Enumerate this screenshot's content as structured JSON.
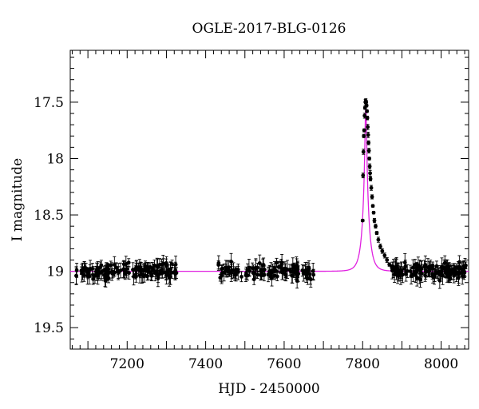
{
  "chart_data": {
    "type": "scatter",
    "title": "OGLE-2017-BLG-0126",
    "xlabel": "HJD - 2450000",
    "ylabel": "I magnitude",
    "xlim": [
      7055,
      8070
    ],
    "ylim": [
      19.69,
      17.04
    ],
    "y_inverted": true,
    "x_ticks": [
      7200,
      7400,
      7600,
      7800,
      8000
    ],
    "x_tick_labels": [
      "7200",
      "7400",
      "7600",
      "7800",
      "8000"
    ],
    "y_ticks": [
      17.5,
      18,
      18.5,
      19,
      19.5
    ],
    "y_tick_labels": [
      "17.5",
      "18",
      "18.5",
      "19",
      "19.5"
    ],
    "grid": false,
    "legend": false,
    "series": [
      {
        "kind": "points_with_errorbars",
        "color": "#000000",
        "segments": [
          {
            "x_range": [
              7068,
              7330
            ],
            "baseline": 19.0,
            "scatter": 0.09,
            "n": 140
          },
          {
            "x_range": [
              7432,
              7675
            ],
            "baseline": 19.0,
            "scatter": 0.09,
            "n": 120
          },
          {
            "x_range": [
              7875,
              8065
            ],
            "baseline": 19.0,
            "scatter": 0.09,
            "n": 130
          }
        ],
        "peak_points": [
          {
            "x": 7800,
            "y": 18.55
          },
          {
            "x": 7801,
            "y": 18.15
          },
          {
            "x": 7802,
            "y": 17.94
          },
          {
            "x": 7803,
            "y": 17.8
          },
          {
            "x": 7804,
            "y": 17.75
          },
          {
            "x": 7805,
            "y": 17.62
          },
          {
            "x": 7806,
            "y": 17.55
          },
          {
            "x": 7807,
            "y": 17.5
          },
          {
            "x": 7808,
            "y": 17.49
          },
          {
            "x": 7809,
            "y": 17.5
          },
          {
            "x": 7810,
            "y": 17.53
          },
          {
            "x": 7811,
            "y": 17.58
          },
          {
            "x": 7812,
            "y": 17.64
          },
          {
            "x": 7813,
            "y": 17.72
          },
          {
            "x": 7814,
            "y": 17.79
          },
          {
            "x": 7815,
            "y": 17.86
          },
          {
            "x": 7816,
            "y": 17.93
          },
          {
            "x": 7817,
            "y": 18.0
          },
          {
            "x": 7818,
            "y": 18.07
          },
          {
            "x": 7819,
            "y": 18.13
          },
          {
            "x": 7820,
            "y": 18.18
          },
          {
            "x": 7822,
            "y": 18.26
          },
          {
            "x": 7824,
            "y": 18.34
          },
          {
            "x": 7826,
            "y": 18.42
          },
          {
            "x": 7828,
            "y": 18.48
          },
          {
            "x": 7830,
            "y": 18.55
          },
          {
            "x": 7833,
            "y": 18.6
          },
          {
            "x": 7836,
            "y": 18.66
          },
          {
            "x": 7840,
            "y": 18.72
          },
          {
            "x": 7845,
            "y": 18.78
          },
          {
            "x": 7850,
            "y": 18.82
          },
          {
            "x": 7856,
            "y": 18.86
          },
          {
            "x": 7862,
            "y": 18.9
          },
          {
            "x": 7868,
            "y": 18.94
          },
          {
            "x": 7874,
            "y": 18.96
          }
        ]
      },
      {
        "kind": "model_curve",
        "color": "#e020e0",
        "baseline": 19.0,
        "peak_x": 7808,
        "peak_y": 17.5
      }
    ]
  }
}
